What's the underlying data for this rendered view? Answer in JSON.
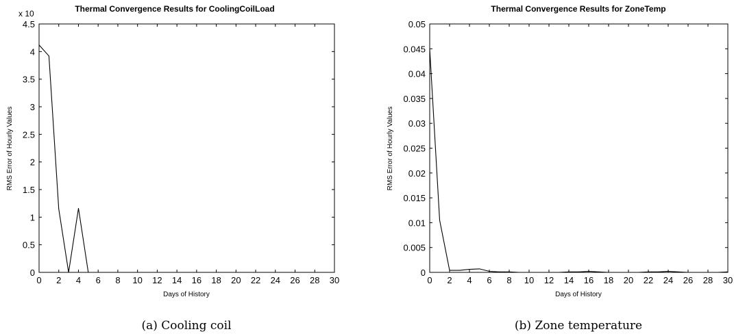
{
  "chart_data": [
    {
      "type": "line",
      "title": "Thermal Convergence Results for CoolingCoilLoad",
      "xlabel": "Days of History",
      "ylabel": "RMS Error of Hourly Values",
      "exponent_label": "x 10",
      "xlim": [
        0,
        30
      ],
      "ylim": [
        0,
        4.5
      ],
      "xticks": [
        "0",
        "2",
        "4",
        "6",
        "8",
        "10",
        "12",
        "14",
        "16",
        "18",
        "20",
        "22",
        "24",
        "26",
        "28",
        "30"
      ],
      "yticks": [
        "0",
        "0.5",
        "1",
        "1.5",
        "2",
        "2.5",
        "3",
        "3.5",
        "4",
        "4.5"
      ],
      "x": [
        0,
        1,
        2,
        3,
        4,
        5,
        6,
        7,
        8,
        9,
        10,
        11,
        12,
        13,
        14,
        15,
        16,
        17,
        18,
        19,
        20,
        21,
        22,
        23,
        24,
        25,
        26,
        27,
        28,
        29,
        30
      ],
      "y": [
        4.12,
        3.92,
        1.15,
        0,
        1.16,
        0,
        0,
        0,
        0,
        0,
        0,
        0,
        0,
        0,
        0,
        0,
        0,
        0,
        0,
        0,
        0,
        0,
        0,
        0,
        0,
        0,
        0,
        0,
        0,
        0,
        0
      ],
      "caption": "(a)  Cooling coil"
    },
    {
      "type": "line",
      "title": "Thermal Convergence Results for ZoneTemp",
      "xlabel": "Days of History",
      "ylabel": "RMS Error of Hourly Values",
      "xlim": [
        0,
        30
      ],
      "ylim": [
        0,
        0.05
      ],
      "xticks": [
        "0",
        "2",
        "4",
        "6",
        "8",
        "10",
        "12",
        "14",
        "16",
        "18",
        "20",
        "22",
        "24",
        "26",
        "28",
        "30"
      ],
      "yticks": [
        "0",
        "0.005",
        "0.01",
        "0.015",
        "0.02",
        "0.025",
        "0.03",
        "0.035",
        "0.04",
        "0.045",
        "0.05"
      ],
      "x": [
        0,
        1,
        2,
        3,
        4,
        5,
        6,
        7,
        8,
        9,
        10,
        11,
        12,
        13,
        14,
        15,
        16,
        17,
        18,
        19,
        20,
        21,
        22,
        23,
        24,
        25,
        26,
        27,
        28,
        29,
        30
      ],
      "y": [
        0.045,
        0.0105,
        0.0004,
        0.0004,
        0.0006,
        0.0007,
        0.0002,
        0.0001,
        0.0001,
        0.0,
        0.0,
        0.0,
        0.0,
        0.0,
        0.0001,
        0.0001,
        0.0002,
        0.0001,
        0.0,
        0.0,
        0.0,
        0.0,
        0.0001,
        0.0001,
        0.0002,
        0.0001,
        0.0,
        0.0,
        0.0,
        0.0,
        0.0001
      ],
      "caption": "(b)  Zone temperature"
    }
  ]
}
